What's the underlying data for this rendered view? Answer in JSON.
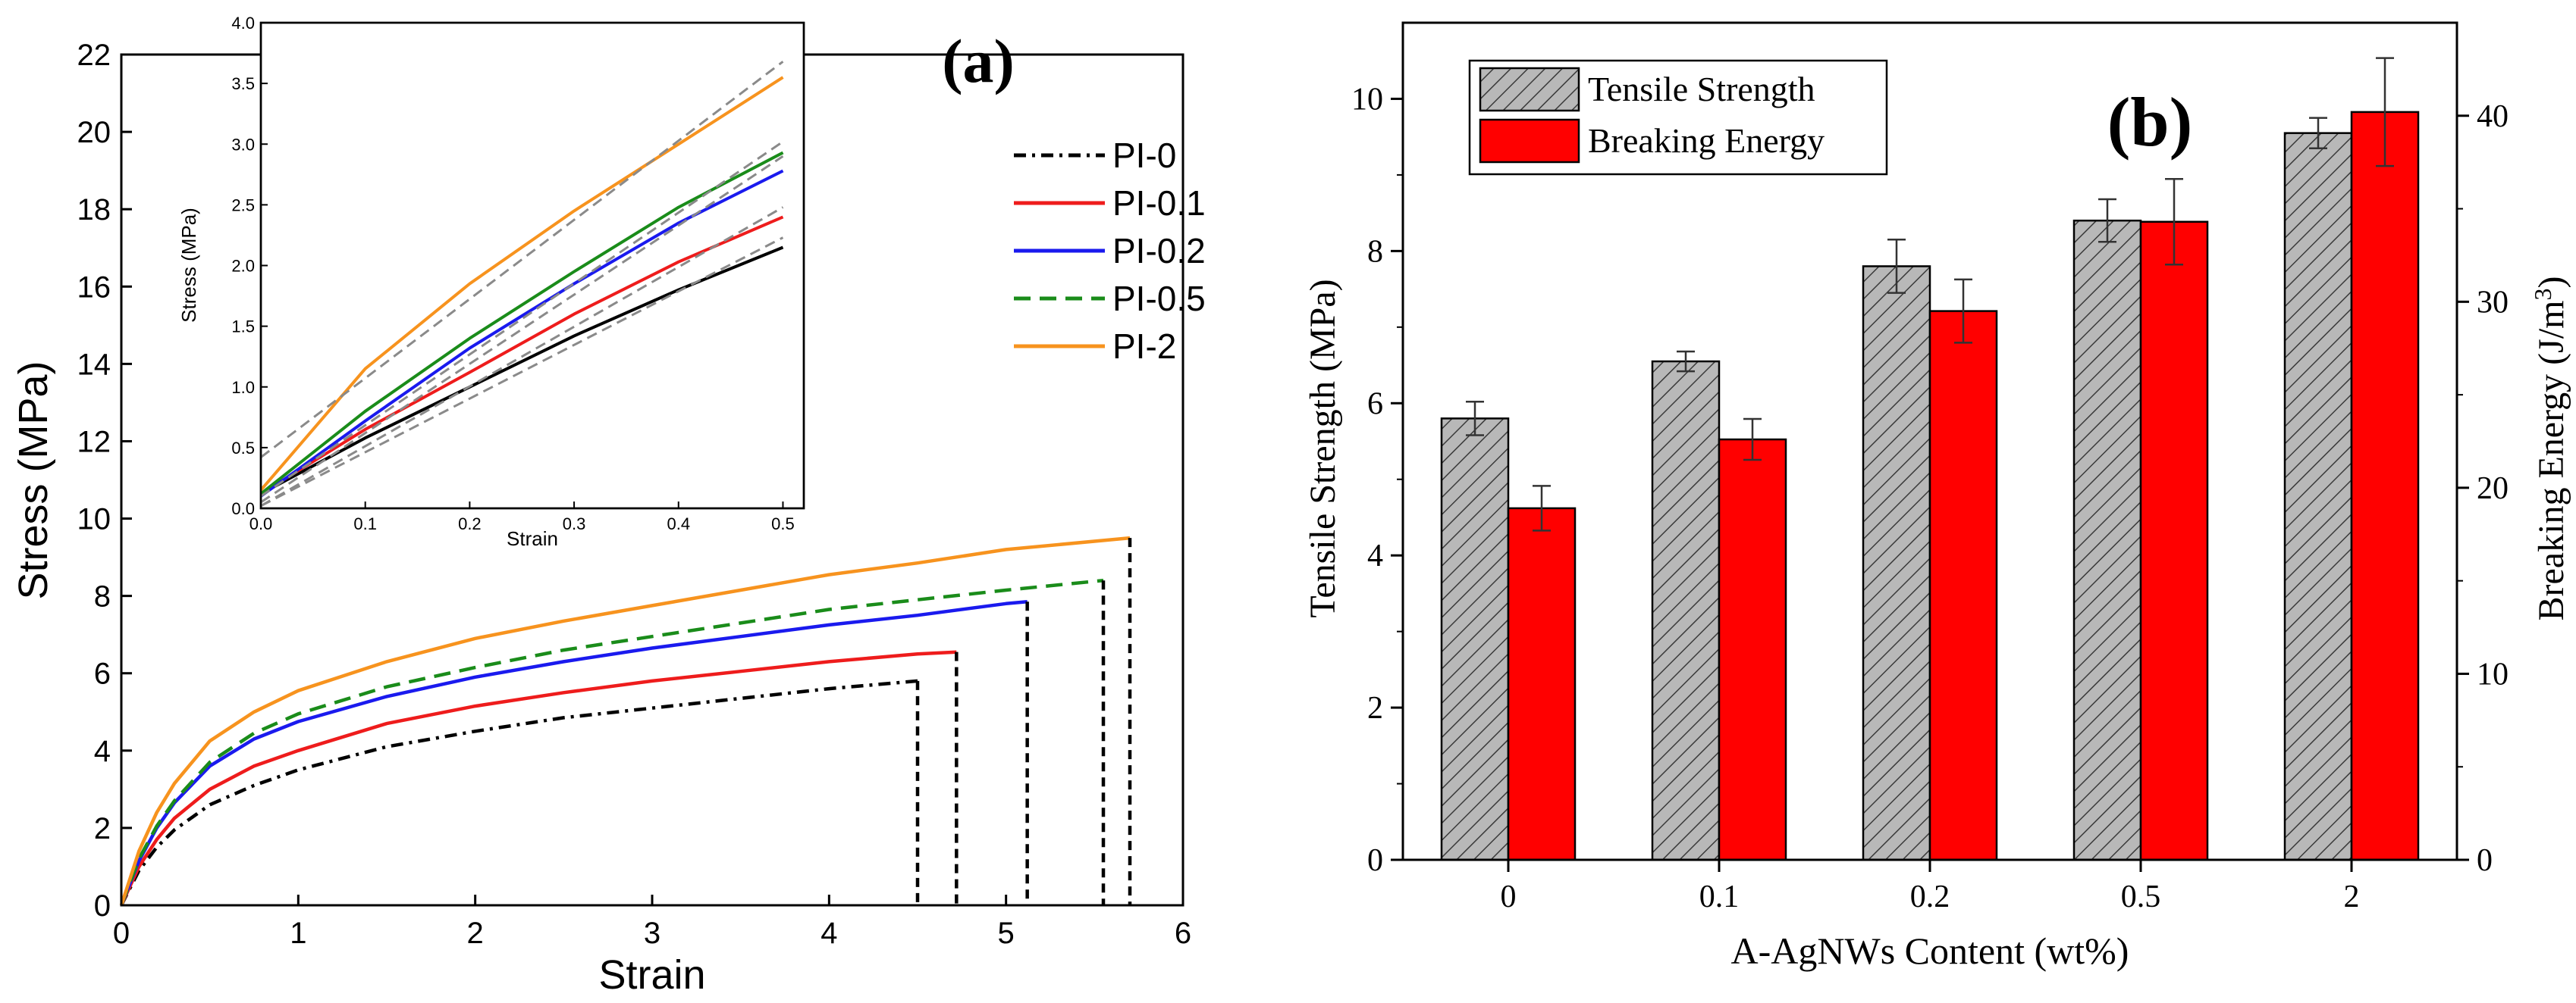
{
  "chart_data": [
    {
      "id": "a",
      "type": "line",
      "panel_label": "(a)",
      "title": "",
      "xlabel": "Strain",
      "ylabel": "Stress (MPa)",
      "xlim": [
        0,
        6
      ],
      "ylim": [
        0,
        22
      ],
      "xticks": [
        0,
        1,
        2,
        3,
        4,
        5,
        6
      ],
      "yticks": [
        0,
        2,
        4,
        6,
        8,
        10,
        12,
        14,
        16,
        18,
        20,
        22
      ],
      "legend_position": "right",
      "series": [
        {
          "name": "PI-0",
          "color": "#000000",
          "dash": "dashdot",
          "points": [
            [
              0,
              0
            ],
            [
              0.1,
              0.9
            ],
            [
              0.2,
              1.5
            ],
            [
              0.3,
              1.95
            ],
            [
              0.5,
              2.6
            ],
            [
              0.75,
              3.1
            ],
            [
              1,
              3.5
            ],
            [
              1.5,
              4.1
            ],
            [
              2,
              4.5
            ],
            [
              2.5,
              4.85
            ],
            [
              3,
              5.1
            ],
            [
              3.5,
              5.35
            ],
            [
              4,
              5.6
            ],
            [
              4.5,
              5.8
            ]
          ],
          "break_strain": 4.5
        },
        {
          "name": "PI-0.1",
          "color": "#ee1c1c",
          "dash": "solid",
          "points": [
            [
              0,
              0
            ],
            [
              0.1,
              1.0
            ],
            [
              0.2,
              1.7
            ],
            [
              0.3,
              2.25
            ],
            [
              0.5,
              3.0
            ],
            [
              0.75,
              3.6
            ],
            [
              1,
              4.0
            ],
            [
              1.5,
              4.7
            ],
            [
              2,
              5.15
            ],
            [
              2.5,
              5.5
            ],
            [
              3,
              5.8
            ],
            [
              3.5,
              6.05
            ],
            [
              4,
              6.3
            ],
            [
              4.5,
              6.5
            ],
            [
              4.72,
              6.55
            ]
          ],
          "break_strain": 4.72
        },
        {
          "name": "PI-0.2",
          "color": "#1a1aee",
          "dash": "solid",
          "points": [
            [
              0,
              0
            ],
            [
              0.1,
              1.15
            ],
            [
              0.2,
              2.0
            ],
            [
              0.3,
              2.65
            ],
            [
              0.5,
              3.6
            ],
            [
              0.75,
              4.3
            ],
            [
              1,
              4.75
            ],
            [
              1.5,
              5.4
            ],
            [
              2,
              5.9
            ],
            [
              2.5,
              6.3
            ],
            [
              3,
              6.65
            ],
            [
              3.5,
              6.95
            ],
            [
              4,
              7.25
            ],
            [
              4.5,
              7.5
            ],
            [
              5,
              7.8
            ],
            [
              5.12,
              7.85
            ]
          ],
          "break_strain": 5.12
        },
        {
          "name": "PI-0.5",
          "color": "#1a8c1a",
          "dash": "dashed",
          "points": [
            [
              0,
              0
            ],
            [
              0.1,
              1.2
            ],
            [
              0.2,
              2.05
            ],
            [
              0.3,
              2.7
            ],
            [
              0.5,
              3.7
            ],
            [
              0.75,
              4.45
            ],
            [
              1,
              4.95
            ],
            [
              1.5,
              5.65
            ],
            [
              2,
              6.15
            ],
            [
              2.5,
              6.6
            ],
            [
              3,
              6.95
            ],
            [
              3.5,
              7.3
            ],
            [
              4,
              7.65
            ],
            [
              4.5,
              7.9
            ],
            [
              5,
              8.15
            ],
            [
              5.55,
              8.4
            ]
          ],
          "break_strain": 5.55
        },
        {
          "name": "PI-2",
          "color": "#f7931e",
          "dash": "solid",
          "points": [
            [
              0,
              0
            ],
            [
              0.1,
              1.4
            ],
            [
              0.2,
              2.4
            ],
            [
              0.3,
              3.15
            ],
            [
              0.5,
              4.25
            ],
            [
              0.75,
              5.0
            ],
            [
              1,
              5.55
            ],
            [
              1.5,
              6.3
            ],
            [
              2,
              6.9
            ],
            [
              2.5,
              7.35
            ],
            [
              3,
              7.75
            ],
            [
              3.5,
              8.15
            ],
            [
              4,
              8.55
            ],
            [
              4.5,
              8.85
            ],
            [
              5,
              9.2
            ],
            [
              5.7,
              9.5
            ]
          ],
          "break_strain": 5.7
        }
      ],
      "inset": {
        "type": "line",
        "xlabel": "Strain",
        "ylabel": "Stress (MPa)",
        "xlim": [
          0,
          0.52
        ],
        "ylim": [
          0,
          4.0
        ],
        "xticks": [
          "0.0",
          "0.1",
          "0.2",
          "0.3",
          "0.4",
          "0.5"
        ],
        "yticks": [
          "0.0",
          "0.5",
          "1.0",
          "1.5",
          "2.0",
          "2.5",
          "3.0",
          "3.5",
          "4.0"
        ],
        "series": [
          {
            "name": "PI-0",
            "color": "#000000",
            "points": [
              [
                0,
                0.12
              ],
              [
                0.1,
                0.58
              ],
              [
                0.2,
                1.0
              ],
              [
                0.3,
                1.42
              ],
              [
                0.4,
                1.8
              ],
              [
                0.5,
                2.15
              ]
            ],
            "fit": [
              [
                0,
                0.02
              ],
              [
                0.5,
                2.23
              ]
            ]
          },
          {
            "name": "PI-0.1",
            "color": "#ee1c1c",
            "points": [
              [
                0,
                0.12
              ],
              [
                0.1,
                0.65
              ],
              [
                0.2,
                1.12
              ],
              [
                0.3,
                1.6
              ],
              [
                0.4,
                2.03
              ],
              [
                0.5,
                2.4
              ]
            ],
            "fit": [
              [
                0,
                0.02
              ],
              [
                0.5,
                2.48
              ]
            ]
          },
          {
            "name": "PI-0.2",
            "color": "#1a1aee",
            "points": [
              [
                0,
                0.1
              ],
              [
                0.1,
                0.72
              ],
              [
                0.2,
                1.32
              ],
              [
                0.3,
                1.85
              ],
              [
                0.4,
                2.35
              ],
              [
                0.5,
                2.78
              ]
            ],
            "fit": [
              [
                0,
                0.05
              ],
              [
                0.5,
                2.9
              ]
            ]
          },
          {
            "name": "PI-0.5",
            "color": "#1a8c1a",
            "points": [
              [
                0,
                0.12
              ],
              [
                0.1,
                0.8
              ],
              [
                0.2,
                1.4
              ],
              [
                0.3,
                1.95
              ],
              [
                0.4,
                2.48
              ],
              [
                0.5,
                2.93
              ]
            ],
            "fit": [
              [
                0,
                0.1
              ],
              [
                0.5,
                3.02
              ]
            ]
          },
          {
            "name": "PI-2",
            "color": "#f7931e",
            "points": [
              [
                0,
                0.15
              ],
              [
                0.1,
                1.15
              ],
              [
                0.2,
                1.85
              ],
              [
                0.3,
                2.45
              ],
              [
                0.4,
                3.0
              ],
              [
                0.5,
                3.55
              ]
            ],
            "fit": [
              [
                0,
                0.42
              ],
              [
                0.5,
                3.68
              ]
            ]
          }
        ]
      }
    },
    {
      "id": "b",
      "type": "bar",
      "panel_label": "(b)",
      "title": "",
      "xlabel": "A-AgNWs Content (wt%)",
      "ylabel": "Tensile Strength (MPa)",
      "ylabel_right": "Breaking Energy (J/m",
      "ylabel_right_sup": "3",
      "ylabel_right_tail": ")",
      "categories": [
        "0",
        "0.1",
        "0.2",
        "0.5",
        "2"
      ],
      "ylim": [
        0,
        11
      ],
      "yticks": [
        0,
        2,
        4,
        6,
        8,
        10
      ],
      "ylim_right": [
        0,
        45
      ],
      "yticks_right": [
        0,
        10,
        20,
        30,
        40
      ],
      "legend_position": "top-left",
      "series": [
        {
          "name": "Tensile Strength",
          "axis": "left",
          "color": "#b4b4b4",
          "pattern": "hatch",
          "values": [
            5.8,
            6.55,
            7.8,
            8.4,
            9.55
          ],
          "errors": [
            0.22,
            0.13,
            0.35,
            0.28,
            0.2
          ]
        },
        {
          "name": "Breaking Energy",
          "axis": "right",
          "color": "#ff0000",
          "pattern": "solid",
          "values": [
            18.9,
            22.6,
            29.5,
            34.3,
            40.2
          ],
          "errors": [
            1.2,
            1.1,
            1.7,
            2.3,
            2.9
          ]
        }
      ]
    }
  ]
}
